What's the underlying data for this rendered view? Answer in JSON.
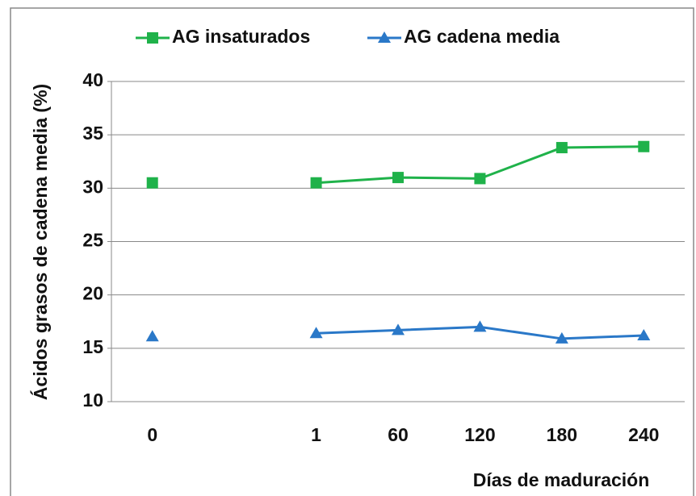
{
  "chart_data": {
    "type": "line",
    "y_label": "Ácidos grasos de cadena media (%)",
    "x_label": "Días de maduración",
    "categories": [
      "0",
      null,
      "1",
      "60",
      "120",
      "180",
      "240"
    ],
    "series": [
      {
        "name": "AG insaturados",
        "color": "#1fb24a",
        "marker": "square",
        "values": [
          30.5,
          null,
          30.5,
          31.0,
          30.9,
          33.8,
          33.9
        ]
      },
      {
        "name": "AG cadena media",
        "color": "#2a78c8",
        "marker": "triangle",
        "values": [
          16.1,
          null,
          16.4,
          16.7,
          17.0,
          15.9,
          16.2
        ]
      }
    ],
    "ylim": [
      10,
      40
    ],
    "yticks": [
      10,
      15,
      20,
      25,
      30,
      35,
      40
    ],
    "grid": true,
    "legend": "top"
  }
}
